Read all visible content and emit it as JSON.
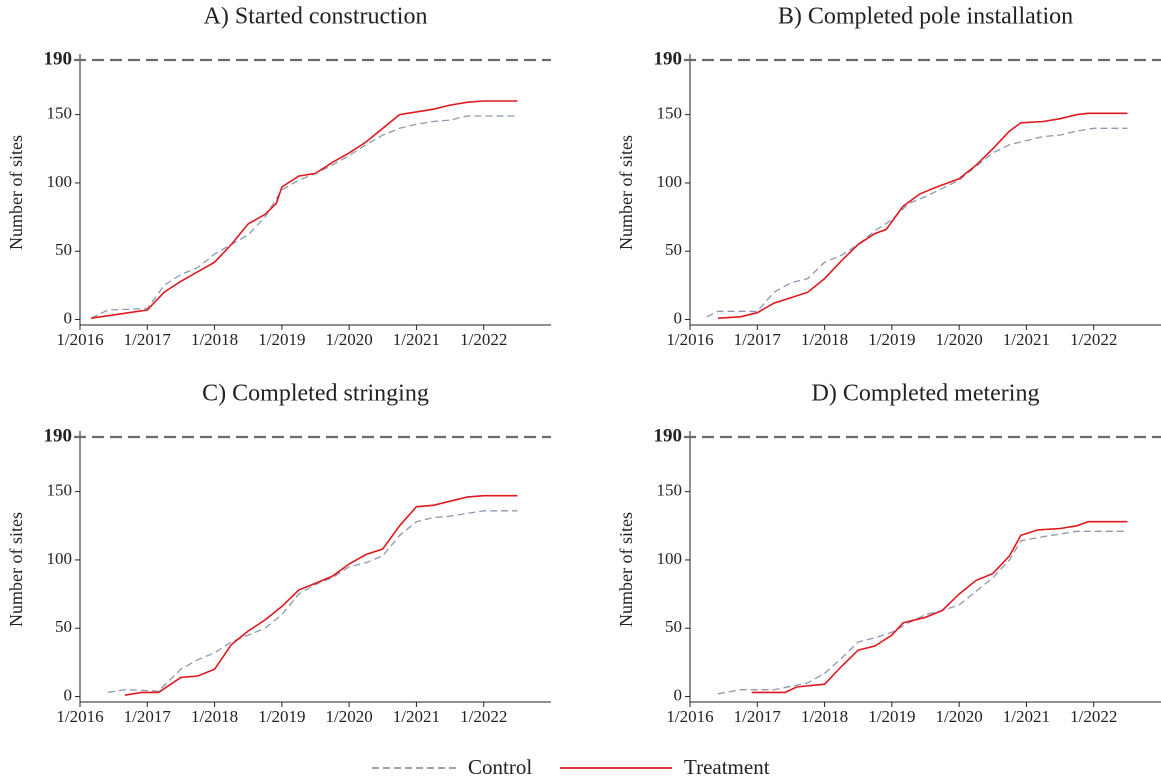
{
  "chart_data": [
    {
      "type": "line",
      "title": "A) Started construction",
      "y_label": "Number of sites",
      "xlim": [
        "1/2016",
        "1/2023"
      ],
      "xticks": [
        "1/2016",
        "1/2017",
        "1/2018",
        "1/2019",
        "1/2020",
        "1/2021",
        "1/2022"
      ],
      "ylim": [
        -4,
        190
      ],
      "yticks": [
        0,
        50,
        100,
        150
      ],
      "ref_line": 190,
      "series": [
        {
          "name": "Control",
          "color": "#8e98ae",
          "line_style": "dashed",
          "x": [
            "3/2016",
            "6/2016",
            "1/2017",
            "4/2017",
            "7/2017",
            "10/2017",
            "1/2018",
            "4/2018",
            "7/2018",
            "10/2018",
            "1/2019",
            "4/2019",
            "7/2019",
            "10/2019",
            "1/2020",
            "4/2020",
            "7/2020",
            "10/2020",
            "1/2021",
            "4/2021",
            "7/2021",
            "10/2021",
            "1/2022",
            "7/2022"
          ],
          "values": [
            1,
            7,
            8,
            25,
            33,
            38,
            48,
            55,
            62,
            75,
            95,
            102,
            107,
            113,
            120,
            128,
            135,
            140,
            143,
            145,
            146,
            149,
            149,
            149
          ]
        },
        {
          "name": "Treatment",
          "color": "#e0191f",
          "line_style": "solid",
          "x": [
            "3/2016",
            "1/2017",
            "4/2017",
            "7/2017",
            "10/2017",
            "1/2018",
            "4/2018",
            "7/2018",
            "10/2018",
            "12/2018",
            "1/2019",
            "4/2019",
            "7/2019",
            "10/2019",
            "1/2020",
            "4/2020",
            "7/2020",
            "10/2020",
            "1/2021",
            "4/2021",
            "7/2021",
            "10/2021",
            "1/2022",
            "7/2022"
          ],
          "values": [
            1,
            7,
            20,
            28,
            35,
            42,
            55,
            70,
            77,
            85,
            97,
            105,
            107,
            115,
            122,
            130,
            140,
            150,
            152,
            154,
            157,
            159,
            160,
            160
          ]
        }
      ]
    },
    {
      "type": "line",
      "title": "B) Completed pole installation",
      "y_label": "Number of sites",
      "xlim": [
        "1/2016",
        "1/2023"
      ],
      "xticks": [
        "1/2016",
        "1/2017",
        "1/2018",
        "1/2019",
        "1/2020",
        "1/2021",
        "1/2022"
      ],
      "ylim": [
        -4,
        190
      ],
      "yticks": [
        0,
        50,
        100,
        150
      ],
      "ref_line": 190,
      "series": [
        {
          "name": "Control",
          "color": "#8e98ae",
          "line_style": "dashed",
          "x": [
            "4/2016",
            "6/2016",
            "1/2017",
            "4/2017",
            "7/2017",
            "10/2017",
            "1/2018",
            "4/2018",
            "7/2018",
            "10/2018",
            "1/2019",
            "4/2019",
            "7/2019",
            "10/2019",
            "1/2020",
            "4/2020",
            "7/2020",
            "10/2020",
            "1/2021",
            "4/2021",
            "7/2021",
            "10/2021",
            "1/2022",
            "7/2022"
          ],
          "values": [
            2,
            6,
            6,
            20,
            27,
            30,
            42,
            47,
            55,
            65,
            73,
            85,
            90,
            96,
            102,
            112,
            122,
            128,
            131,
            134,
            135,
            138,
            140,
            140
          ]
        },
        {
          "name": "Treatment",
          "color": "#e0191f",
          "line_style": "solid",
          "x": [
            "6/2016",
            "10/2016",
            "1/2017",
            "4/2017",
            "7/2017",
            "10/2017",
            "1/2018",
            "4/2018",
            "7/2018",
            "10/2018",
            "12/2018",
            "3/2019",
            "6/2019",
            "9/2019",
            "1/2020",
            "4/2020",
            "7/2020",
            "10/2020",
            "12/2020",
            "4/2021",
            "7/2021",
            "10/2021",
            "12/2021",
            "7/2022"
          ],
          "values": [
            1,
            2,
            5,
            12,
            16,
            20,
            30,
            43,
            55,
            63,
            66,
            83,
            92,
            97,
            103,
            113,
            125,
            138,
            144,
            145,
            147,
            150,
            151,
            151
          ]
        }
      ]
    },
    {
      "type": "line",
      "title": "C) Completed stringing",
      "y_label": "Number of sites",
      "xlim": [
        "1/2016",
        "1/2023"
      ],
      "xticks": [
        "1/2016",
        "1/2017",
        "1/2018",
        "1/2019",
        "1/2020",
        "1/2021",
        "1/2022"
      ],
      "ylim": [
        -4,
        190
      ],
      "yticks": [
        0,
        50,
        100,
        150
      ],
      "ref_line": 190,
      "series": [
        {
          "name": "Control",
          "color": "#8e98ae",
          "line_style": "dashed",
          "x": [
            "6/2016",
            "9/2016",
            "3/2017",
            "7/2017",
            "10/2017",
            "1/2018",
            "4/2018",
            "7/2018",
            "10/2018",
            "1/2019",
            "4/2019",
            "7/2019",
            "10/2019",
            "1/2020",
            "4/2020",
            "7/2020",
            "10/2020",
            "1/2021",
            "4/2021",
            "7/2021",
            "10/2021",
            "1/2022",
            "7/2022"
          ],
          "values": [
            3,
            5,
            4,
            20,
            27,
            32,
            40,
            45,
            50,
            60,
            75,
            82,
            87,
            95,
            98,
            103,
            118,
            128,
            131,
            132,
            134,
            136,
            136
          ]
        },
        {
          "name": "Treatment",
          "color": "#e0191f",
          "line_style": "solid",
          "x": [
            "9/2016",
            "12/2016",
            "3/2017",
            "7/2017",
            "10/2017",
            "1/2018",
            "4/2018",
            "7/2018",
            "10/2018",
            "1/2019",
            "4/2019",
            "7/2019",
            "10/2019",
            "1/2020",
            "4/2020",
            "7/2020",
            "10/2020",
            "1/2021",
            "4/2021",
            "7/2021",
            "10/2021",
            "1/2022",
            "7/2022"
          ],
          "values": [
            1,
            3,
            3,
            14,
            15,
            20,
            38,
            48,
            56,
            66,
            78,
            83,
            88,
            97,
            104,
            108,
            125,
            139,
            140,
            143,
            146,
            147,
            147
          ]
        }
      ]
    },
    {
      "type": "line",
      "title": "D) Completed metering",
      "y_label": "Number of sites",
      "xlim": [
        "1/2016",
        "1/2023"
      ],
      "xticks": [
        "1/2016",
        "1/2017",
        "1/2018",
        "1/2019",
        "1/2020",
        "1/2021",
        "1/2022"
      ],
      "ylim": [
        -4,
        190
      ],
      "yticks": [
        0,
        50,
        100,
        150
      ],
      "ref_line": 190,
      "series": [
        {
          "name": "Control",
          "color": "#8e98ae",
          "line_style": "dashed",
          "x": [
            "6/2016",
            "10/2016",
            "4/2017",
            "10/2017",
            "1/2018",
            "4/2018",
            "7/2018",
            "10/2018",
            "1/2019",
            "4/2019",
            "7/2019",
            "10/2019",
            "1/2020",
            "4/2020",
            "7/2020",
            "10/2020",
            "12/2020",
            "4/2021",
            "7/2021",
            "10/2021",
            "1/2022",
            "7/2022"
          ],
          "values": [
            2,
            5,
            5,
            10,
            17,
            28,
            40,
            43,
            47,
            54,
            60,
            63,
            67,
            77,
            87,
            100,
            114,
            117,
            119,
            121,
            121,
            121
          ]
        },
        {
          "name": "Treatment",
          "color": "#e0191f",
          "line_style": "solid",
          "x": [
            "12/2016",
            "6/2017",
            "8/2017",
            "1/2018",
            "4/2018",
            "7/2018",
            "10/2018",
            "1/2019",
            "3/2019",
            "7/2019",
            "10/2019",
            "1/2020",
            "4/2020",
            "7/2020",
            "10/2020",
            "12/2020",
            "3/2021",
            "7/2021",
            "10/2021",
            "12/2021",
            "7/2022"
          ],
          "values": [
            3,
            3,
            7,
            9,
            22,
            34,
            37,
            45,
            54,
            58,
            63,
            75,
            85,
            90,
            103,
            118,
            122,
            123,
            125,
            128,
            128
          ]
        }
      ]
    }
  ]
}
